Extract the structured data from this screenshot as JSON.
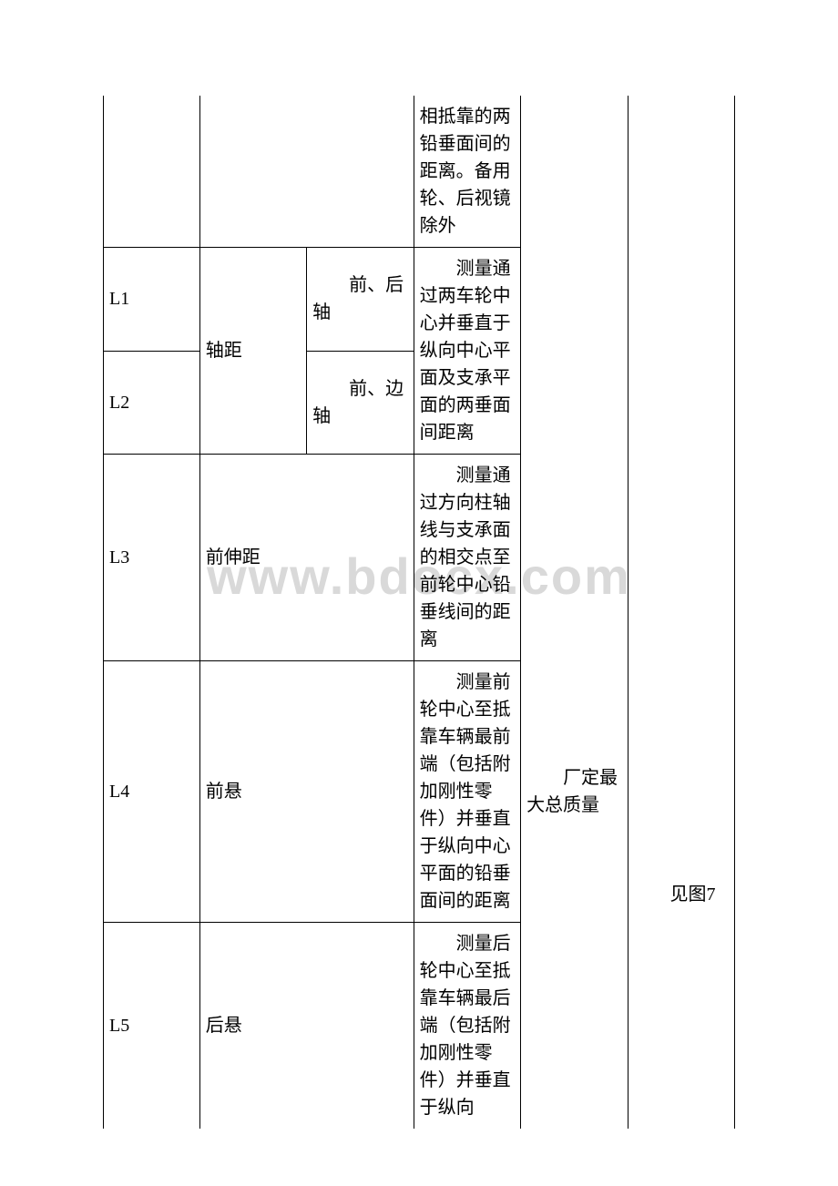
{
  "watermark": "www.bdocx.com",
  "table": {
    "rows": {
      "r0": {
        "col4": "相抵靠的两铅垂面间的距离。备用轮、后视镜除外"
      },
      "r1": {
        "col1": "L1",
        "col2": "轴距",
        "col3": "前、后轴",
        "col4": "测量通过两车轮中心并垂直于纵向中心平面及支承平面的两垂面间距离"
      },
      "r2": {
        "col1": "L2",
        "col3": "前、边轴"
      },
      "r3": {
        "col1": "L3",
        "col2": "前伸距",
        "col4": "测量通过方向柱轴线与支承面的相交点至前轮中心铅垂线间的距离",
        "col5": "厂定最大总质量"
      },
      "r4": {
        "col1": "L4",
        "col2": "前悬",
        "col4": "测量前轮中心至抵靠车辆最前端（包括附加刚性零件）并垂直于纵向中心平面的铅垂面间的距离",
        "col6": "见图7"
      },
      "r5": {
        "col1": "L5",
        "col2": "后悬",
        "col4": "测量后轮中心至抵靠车辆最后端（包括附加刚性零件）并垂直于纵向"
      }
    }
  }
}
